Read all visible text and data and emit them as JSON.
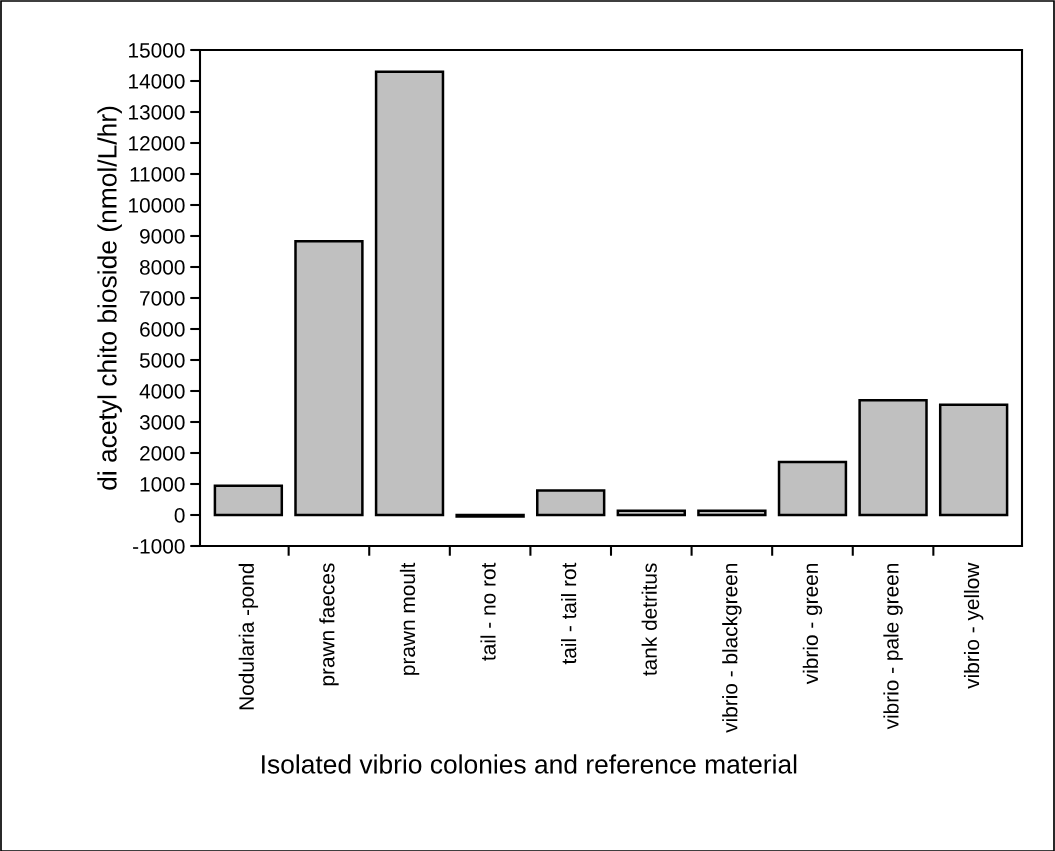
{
  "chart_data": {
    "type": "bar",
    "xlabel": "Isolated vibrio colonies and reference material",
    "ylabel": "di acetyl chito bioside (nmol/L/hr)",
    "categories": [
      "Nodularia -pond",
      "prawn faeces",
      "prawn moult",
      "tail - no rot",
      "tail - tail rot",
      "tank detritus",
      "vibrio - blackgreen",
      "vibrio - green",
      "vibrio - pale green",
      "vibrio - yellow"
    ],
    "values": [
      940,
      8830,
      14300,
      -50,
      790,
      140,
      140,
      1710,
      3700,
      3560
    ],
    "color": "#c0c0c0",
    "ylim": [
      -1000,
      15000
    ],
    "yticks": [
      -1000,
      0,
      1000,
      2000,
      3000,
      4000,
      5000,
      6000,
      7000,
      8000,
      9000,
      10000,
      11000,
      12000,
      13000,
      14000,
      15000
    ],
    "grid": false,
    "legend": false
  }
}
